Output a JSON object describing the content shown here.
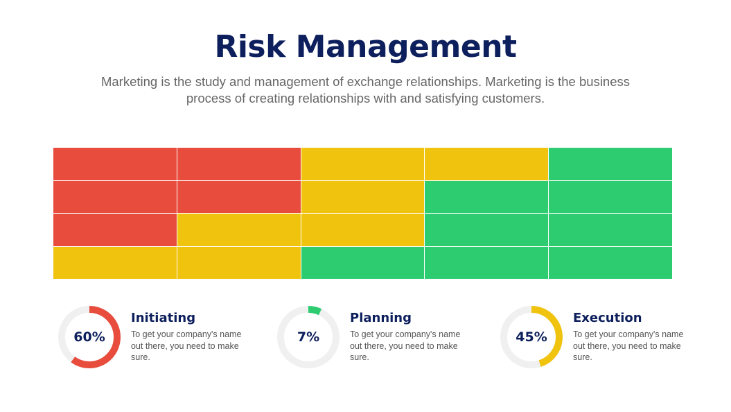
{
  "title": "Risk Management",
  "subtitle": "Marketing is the study and management of exchange relationships. Marketing is the business process of creating relationships with and satisfying customers.",
  "colors": {
    "high": "#e74c3c",
    "medium": "#f0c30f",
    "low": "#2ecc71",
    "track": "#f0f0f0",
    "navy": "#0d1f5c"
  },
  "chart_data": [
    {
      "type": "heatmap",
      "rows": [
        [
          "high",
          "high",
          "medium",
          "medium",
          "low"
        ],
        [
          "high",
          "high",
          "medium",
          "low",
          "low"
        ],
        [
          "high",
          "medium",
          "medium",
          "low",
          "low"
        ],
        [
          "medium",
          "medium",
          "low",
          "low",
          "low"
        ]
      ]
    },
    {
      "type": "pie",
      "subtype": "donut",
      "items": [
        {
          "name": "Initiating",
          "value": 60,
          "label": "60%",
          "color": "#e74c3c",
          "description": "To get your company's name out there, you need to make sure."
        },
        {
          "name": "Planning",
          "value": 7,
          "label": "7%",
          "color": "#2ecc71",
          "description": "To get your company's name out there, you need to make sure."
        },
        {
          "name": "Execution",
          "value": 45,
          "label": "45%",
          "color": "#f0c30f",
          "description": "To get your company's name out there, you need to make sure."
        }
      ]
    }
  ]
}
